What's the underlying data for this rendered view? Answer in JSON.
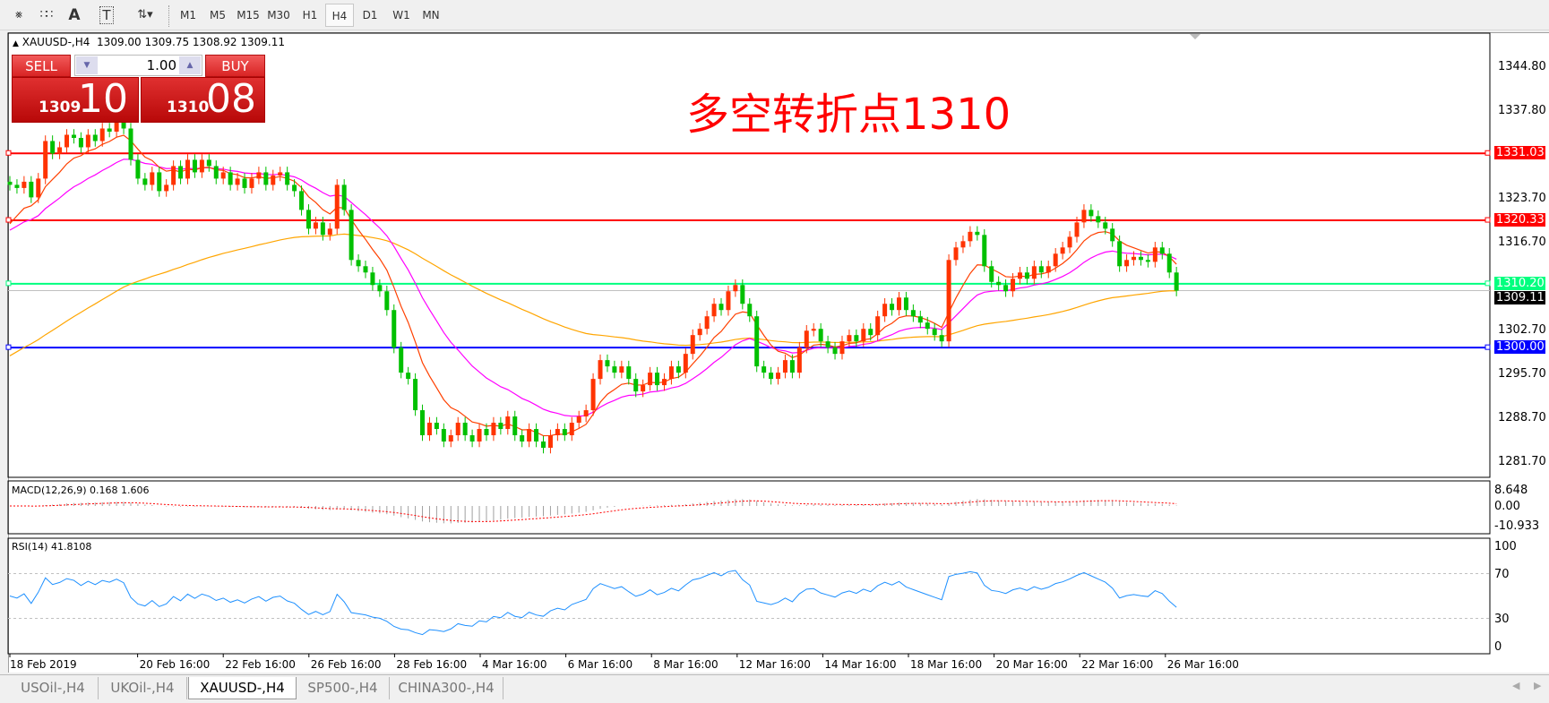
{
  "toolbar": {
    "icons": [
      "indicators-icon",
      "periods-separator-icon",
      "text-icon",
      "text-label-icon",
      "arrows-icon"
    ],
    "timeframes": [
      "M1",
      "M5",
      "M15",
      "M30",
      "H1",
      "H4",
      "D1",
      "W1",
      "MN"
    ],
    "active_timeframe": "H4"
  },
  "header": {
    "symbol": "XAUUSD-,H4",
    "ohlc": "1309.00 1309.75 1308.92 1309.11"
  },
  "trade": {
    "sell_label": "SELL",
    "buy_label": "BUY",
    "volume": "1.00",
    "sell_small": "1309",
    "sell_large": "10",
    "buy_small": "1310",
    "buy_large": "08"
  },
  "annotation": "多空转折点1310",
  "price_axis": [
    "1344.80",
    "1337.80",
    "1323.70",
    "1316.70",
    "1302.70",
    "1295.70",
    "1288.70",
    "1281.70"
  ],
  "hlines": [
    {
      "label": "1331.03",
      "value": 1331.03,
      "color": "#ff0000"
    },
    {
      "label": "1320.33",
      "value": 1320.33,
      "color": "#ff0000"
    },
    {
      "label": "1310.20",
      "value": 1310.2,
      "color": "#00ff7f"
    },
    {
      "label": "1300.00",
      "value": 1300.0,
      "color": "#0000ff"
    }
  ],
  "current_price": {
    "label": "1309.11",
    "value": 1309.11
  },
  "macd": {
    "label": "MACD(12,26,9) 0.168 1.606",
    "axis": [
      "8.648",
      "0.00",
      "-10.933"
    ]
  },
  "rsi": {
    "label": "RSI(14) 41.8108",
    "axis": [
      "100",
      "70",
      "30",
      "0"
    ]
  },
  "time_axis": [
    "18 Feb 2019",
    "20 Feb 16:00",
    "22 Feb 16:00",
    "26 Feb 16:00",
    "28 Feb 16:00",
    "4 Mar 16:00",
    "6 Mar 16:00",
    "8 Mar 16:00",
    "12 Mar 16:00",
    "14 Mar 16:00",
    "18 Mar 16:00",
    "20 Mar 16:00",
    "22 Mar 16:00",
    "26 Mar 16:00"
  ],
  "tabs": [
    "USOil-,H4",
    "UKOil-,H4",
    "XAUUSD-,H4",
    "SP500-,H4",
    "CHINA300-,H4"
  ],
  "active_tab": "XAUUSD-,H4",
  "colors": {
    "bull": "#ff3300",
    "bear": "#00c000",
    "ma_fast": "#ff4000",
    "ma_mid": "#ff00ff",
    "ma_slow": "#ffa500",
    "rsi": "#1e90ff",
    "macd_signal": "#ff0000"
  },
  "chart_data": {
    "type": "candlestick",
    "ylim": [
      1281.7,
      1344.8
    ],
    "closes": [
      1326,
      1325.5,
      1326.5,
      1324,
      1327,
      1333,
      1331,
      1332,
      1334,
      1333.5,
      1332,
      1334,
      1333,
      1335,
      1334.5,
      1336,
      1335,
      1330,
      1327,
      1326,
      1328,
      1325,
      1326,
      1329,
      1327,
      1330,
      1328,
      1330,
      1329,
      1327,
      1328,
      1326,
      1327,
      1325.5,
      1327,
      1328,
      1326,
      1327.5,
      1328,
      1326,
      1325,
      1322,
      1319,
      1320,
      1318,
      1319,
      1326,
      1322,
      1314,
      1313,
      1312,
      1310,
      1309,
      1306,
      1300,
      1296,
      1295,
      1290,
      1286,
      1288,
      1287,
      1285,
      1286,
      1288,
      1286,
      1285,
      1287,
      1286,
      1288,
      1287,
      1289,
      1286,
      1285,
      1287,
      1285,
      1284,
      1286,
      1287,
      1286,
      1288,
      1289,
      1290,
      1295,
      1298,
      1297,
      1296,
      1297,
      1295,
      1293,
      1294,
      1296,
      1294,
      1295,
      1297,
      1296,
      1299,
      1302,
      1303,
      1305,
      1307,
      1306,
      1309,
      1310,
      1307,
      1305,
      1297,
      1296,
      1295,
      1296,
      1298,
      1296,
      1300,
      1302.7,
      1303,
      1301,
      1300,
      1299,
      1301,
      1302,
      1301,
      1303,
      1302,
      1305,
      1307,
      1306,
      1308,
      1306,
      1305,
      1304,
      1303,
      1302,
      1301,
      1314,
      1316,
      1317,
      1318.5,
      1318,
      1313,
      1310.5,
      1310,
      1309,
      1311,
      1312,
      1311,
      1313,
      1312,
      1313,
      1315,
      1316,
      1317.7,
      1320,
      1322,
      1321,
      1320,
      1319,
      1317,
      1313,
      1314,
      1314.5,
      1314,
      1313.7,
      1316,
      1315,
      1312,
      1309.1
    ]
  }
}
